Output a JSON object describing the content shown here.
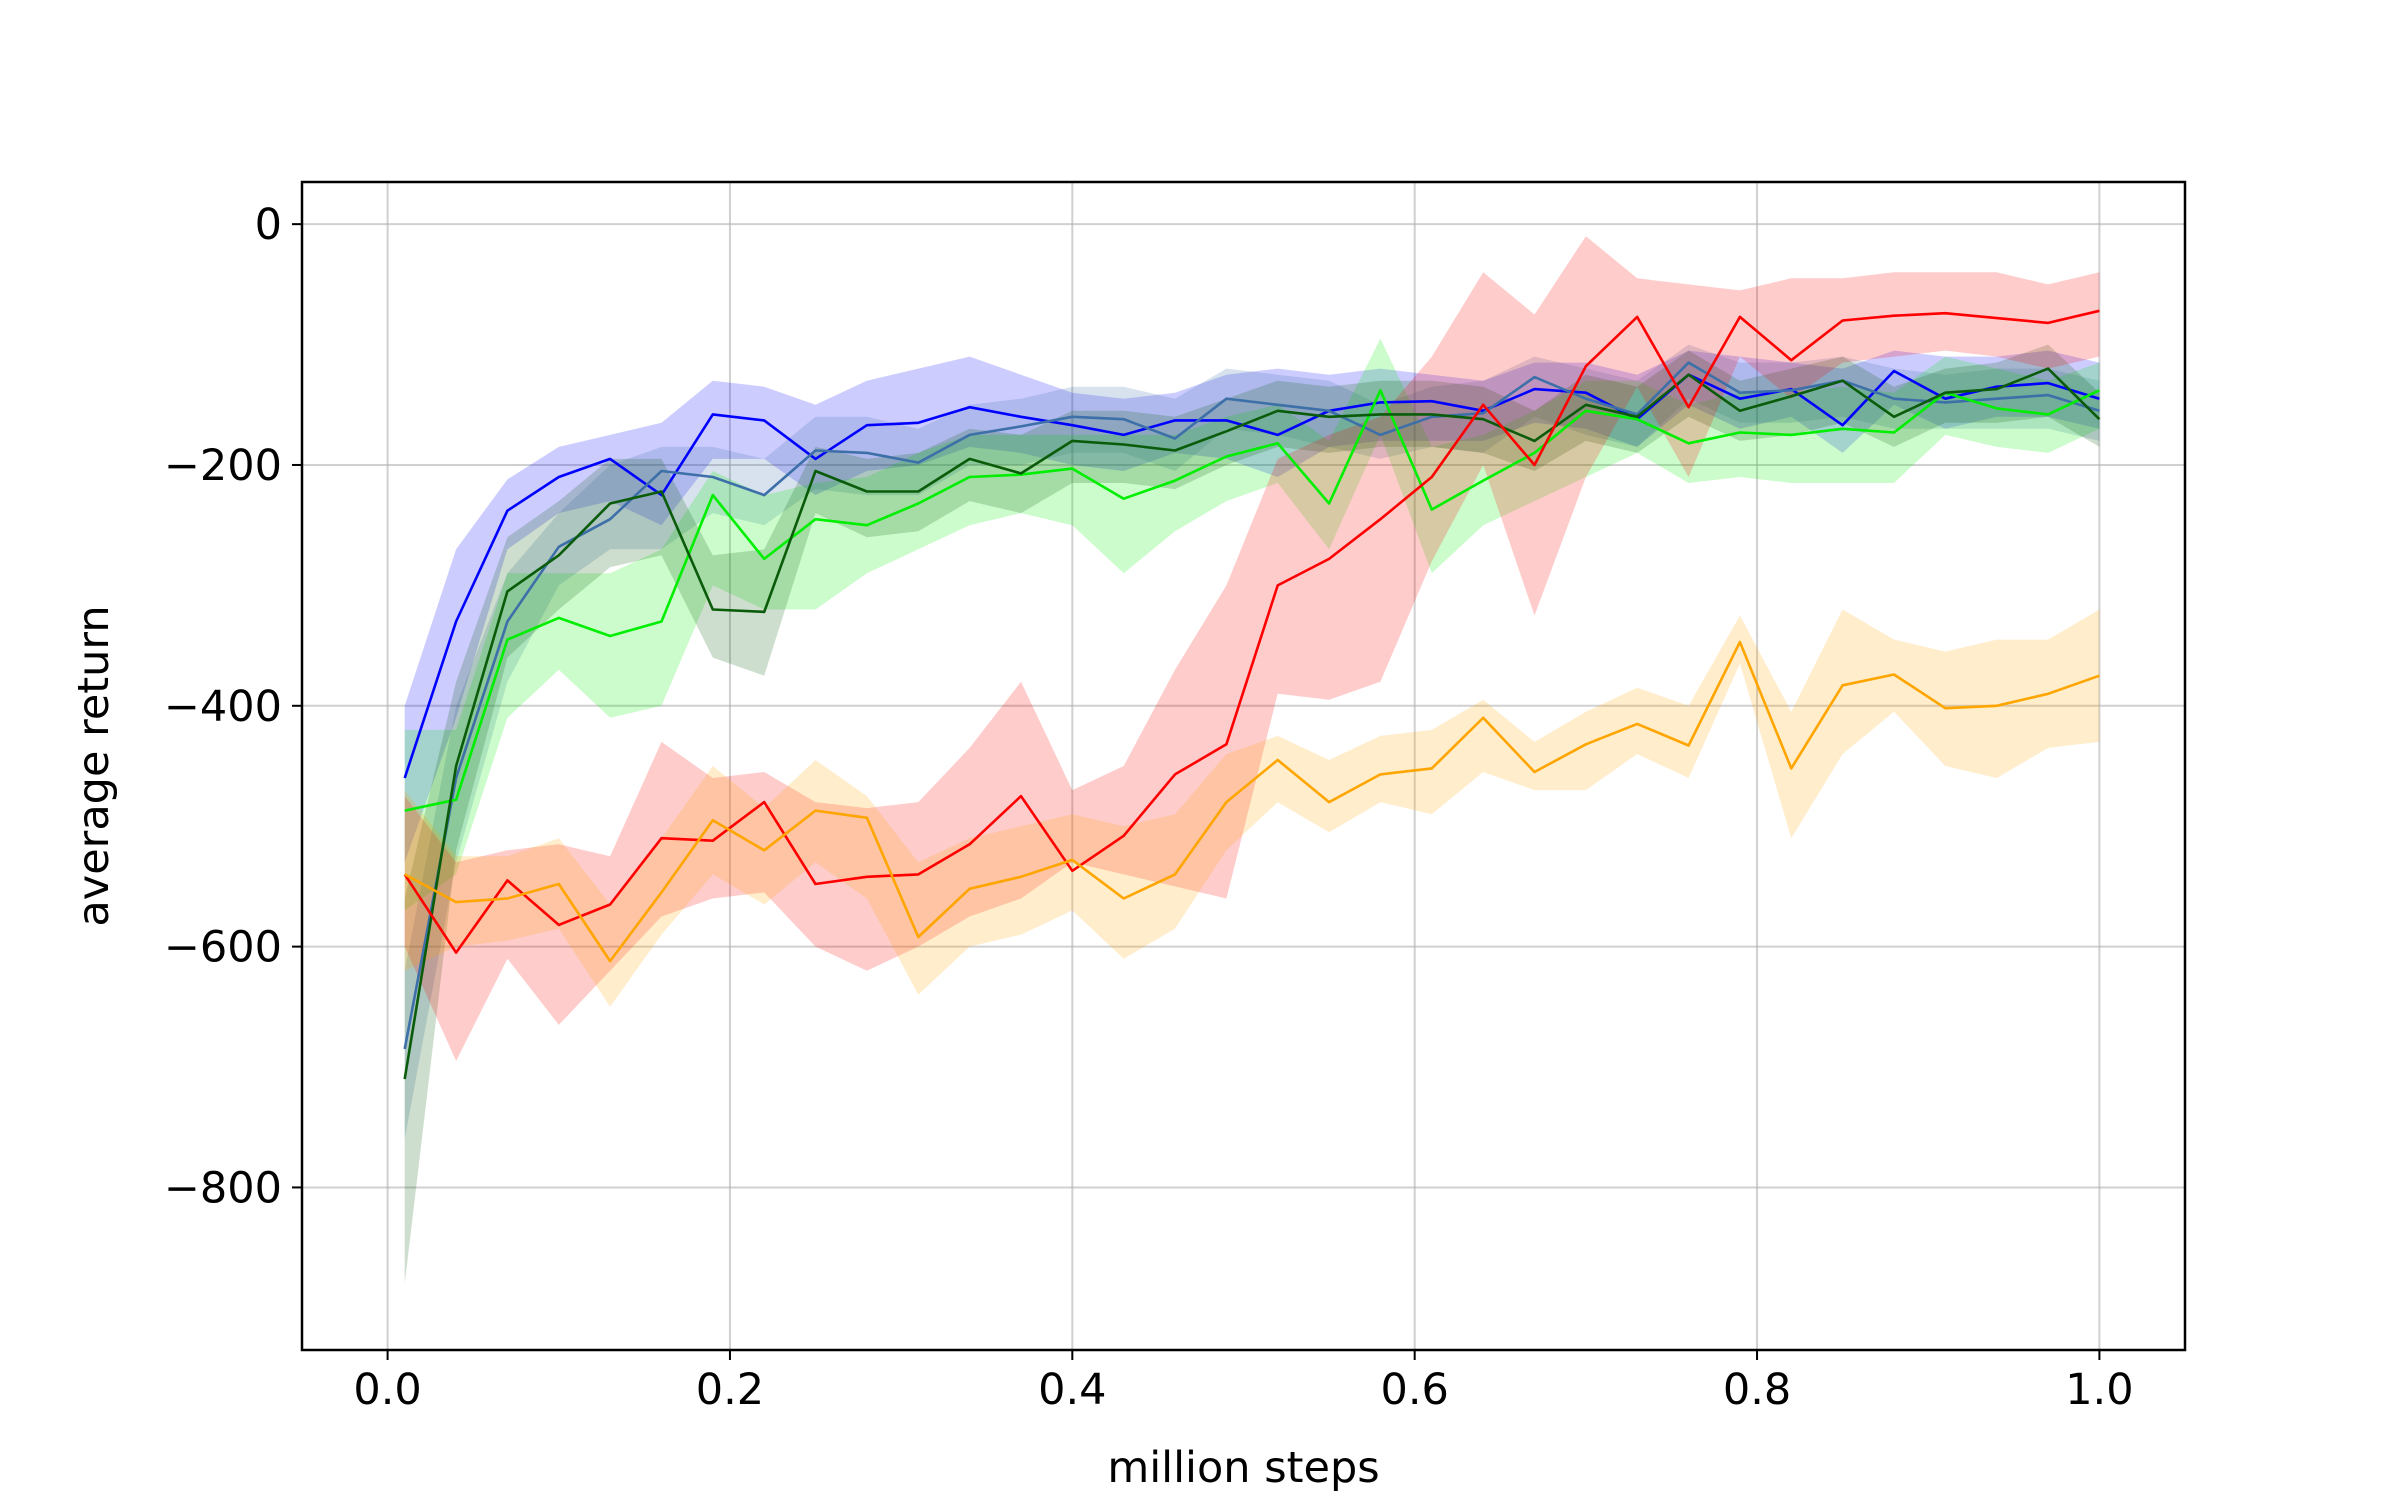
{
  "chart_data": {
    "type": "line",
    "title": "",
    "xlabel": "million steps",
    "ylabel": "average return",
    "xlim": [
      -0.05,
      1.05
    ],
    "ylim": [
      -935,
      35
    ],
    "x_ticks": [
      0.0,
      0.2,
      0.4,
      0.6,
      0.8,
      1.0
    ],
    "x_tick_labels": [
      "0.0",
      "0.2",
      "0.4",
      "0.6",
      "0.8",
      "1.0"
    ],
    "y_ticks": [
      0,
      -200,
      -400,
      -600,
      -800
    ],
    "y_tick_labels": [
      "0",
      "−200",
      "−400",
      "−600",
      "−800"
    ],
    "grid": true,
    "legend": "none",
    "x": [
      0.01,
      0.04,
      0.07,
      0.1,
      0.13,
      0.16,
      0.19,
      0.22,
      0.25,
      0.28,
      0.31,
      0.34,
      0.37,
      0.4,
      0.43,
      0.46,
      0.49,
      0.52,
      0.55,
      0.58,
      0.61,
      0.64,
      0.67,
      0.7,
      0.73,
      0.76,
      0.79,
      0.82,
      0.85,
      0.88,
      0.91,
      0.94,
      0.97,
      1.0
    ],
    "series": [
      {
        "color": "#0000ff",
        "values": [
          -460,
          -330,
          -238,
          -210,
          -195,
          -225,
          -158,
          -163,
          -195,
          -167,
          -165,
          -152,
          -160,
          -167,
          -175,
          -163,
          -163,
          -175,
          -155,
          -148,
          -147,
          -155,
          -137,
          -140,
          -162,
          -125,
          -145,
          -137,
          -167,
          -122,
          -145,
          -135,
          -132,
          -145
        ],
        "lower": [
          -530,
          -410,
          -270,
          -240,
          -230,
          -250,
          -195,
          -195,
          -225,
          -205,
          -200,
          -185,
          -190,
          -200,
          -205,
          -190,
          -195,
          -210,
          -185,
          -180,
          -180,
          -180,
          -165,
          -170,
          -185,
          -150,
          -170,
          -160,
          -190,
          -150,
          -170,
          -160,
          -160,
          -170
        ],
        "upper": [
          -400,
          -270,
          -212,
          -185,
          -175,
          -165,
          -130,
          -135,
          -150,
          -130,
          -120,
          -110,
          -125,
          -140,
          -145,
          -140,
          -125,
          -120,
          -125,
          -120,
          -125,
          -130,
          -115,
          -115,
          -125,
          -105,
          -110,
          -115,
          -120,
          -105,
          -110,
          -110,
          -105,
          -115
        ]
      },
      {
        "color": "#3d6fa8",
        "values": [
          -685,
          -460,
          -330,
          -268,
          -245,
          -205,
          -210,
          -225,
          -188,
          -190,
          -198,
          -175,
          -168,
          -160,
          -162,
          -178,
          -145,
          -150,
          -155,
          -175,
          -160,
          -157,
          -127,
          -145,
          -158,
          -115,
          -140,
          -138,
          -130,
          -145,
          -148,
          -145,
          -142,
          -155
        ],
        "lower": [
          -760,
          -530,
          -380,
          -300,
          -270,
          -270,
          -240,
          -250,
          -220,
          -225,
          -225,
          -200,
          -200,
          -190,
          -190,
          -205,
          -170,
          -175,
          -185,
          -195,
          -185,
          -190,
          -160,
          -175,
          -185,
          -145,
          -165,
          -165,
          -160,
          -170,
          -170,
          -170,
          -170,
          -180
        ],
        "upper": [
          -620,
          -400,
          -290,
          -240,
          -200,
          -185,
          -185,
          -195,
          -160,
          -160,
          -170,
          -150,
          -145,
          -135,
          -135,
          -145,
          -120,
          -125,
          -130,
          -150,
          -135,
          -130,
          -110,
          -120,
          -130,
          -100,
          -115,
          -115,
          -110,
          -120,
          -125,
          -120,
          -120,
          -130
        ]
      },
      {
        "color": "#00ee00",
        "values": [
          -487,
          -478,
          -345,
          -327,
          -342,
          -330,
          -225,
          -278,
          -245,
          -250,
          -232,
          -210,
          -208,
          -203,
          -228,
          -213,
          -193,
          -182,
          -232,
          -138,
          -237,
          -213,
          -190,
          -155,
          -162,
          -182,
          -173,
          -175,
          -170,
          -173,
          -140,
          -153,
          -158,
          -138
        ],
        "lower": [
          -570,
          -540,
          -410,
          -370,
          -410,
          -400,
          -300,
          -320,
          -320,
          -290,
          -270,
          -250,
          -240,
          -250,
          -290,
          -255,
          -230,
          -215,
          -270,
          -175,
          -290,
          -250,
          -230,
          -210,
          -190,
          -215,
          -210,
          -215,
          -215,
          -215,
          -175,
          -185,
          -190,
          -170
        ],
        "upper": [
          -420,
          -420,
          -290,
          -290,
          -290,
          -270,
          -205,
          -225,
          -215,
          -210,
          -190,
          -175,
          -175,
          -175,
          -175,
          -175,
          -160,
          -150,
          -180,
          -95,
          -185,
          -175,
          -155,
          -130,
          -130,
          -150,
          -140,
          -140,
          -135,
          -140,
          -110,
          -120,
          -130,
          -115
        ]
      },
      {
        "color": "#0a5c0a",
        "values": [
          -710,
          -450,
          -305,
          -275,
          -232,
          -222,
          -320,
          -322,
          -205,
          -222,
          -222,
          -195,
          -207,
          -180,
          -183,
          -188,
          -172,
          -155,
          -160,
          -158,
          -158,
          -162,
          -180,
          -150,
          -160,
          -125,
          -155,
          -143,
          -130,
          -160,
          -140,
          -137,
          -120,
          -162
        ],
        "lower": [
          -880,
          -520,
          -360,
          -320,
          -285,
          -275,
          -360,
          -375,
          -240,
          -260,
          -255,
          -230,
          -240,
          -215,
          -215,
          -220,
          -200,
          -185,
          -190,
          -185,
          -185,
          -190,
          -205,
          -180,
          -190,
          -160,
          -180,
          -175,
          -165,
          -185,
          -165,
          -165,
          -160,
          -185
        ],
        "upper": [
          -560,
          -380,
          -260,
          -230,
          -195,
          -195,
          -275,
          -270,
          -185,
          -195,
          -190,
          -170,
          -175,
          -155,
          -155,
          -160,
          -145,
          -130,
          -135,
          -130,
          -130,
          -135,
          -155,
          -125,
          -135,
          -105,
          -130,
          -120,
          -110,
          -135,
          -120,
          -115,
          -100,
          -140
        ]
      },
      {
        "color": "#ff0000",
        "values": [
          -540,
          -605,
          -545,
          -582,
          -565,
          -510,
          -512,
          -480,
          -548,
          -542,
          -540,
          -515,
          -475,
          -537,
          -508,
          -457,
          -432,
          -300,
          -278,
          -245,
          -210,
          -150,
          -200,
          -118,
          -77,
          -152,
          -77,
          -113,
          -80,
          -76,
          -74,
          -78,
          -82,
          -72
        ],
        "lower": [
          -600,
          -695,
          -610,
          -665,
          -620,
          -575,
          -560,
          -555,
          -600,
          -620,
          -600,
          -575,
          -560,
          -530,
          -540,
          -550,
          -560,
          -390,
          -395,
          -380,
          -280,
          -200,
          -325,
          -210,
          -135,
          -210,
          -110,
          -145,
          -115,
          -110,
          -105,
          -110,
          -120,
          -110
        ],
        "upper": [
          -475,
          -530,
          -520,
          -515,
          -525,
          -430,
          -460,
          -455,
          -480,
          -485,
          -480,
          -435,
          -380,
          -470,
          -450,
          -370,
          -300,
          -195,
          -175,
          -160,
          -110,
          -40,
          -75,
          -10,
          -45,
          -50,
          -55,
          -45,
          -45,
          -40,
          -40,
          -40,
          -50,
          -40
        ]
      },
      {
        "color": "#ffa500",
        "values": [
          -540,
          -563,
          -560,
          -548,
          -612,
          -555,
          -495,
          -520,
          -487,
          -493,
          -592,
          -552,
          -542,
          -528,
          -560,
          -540,
          -480,
          -445,
          -480,
          -457,
          -452,
          -410,
          -455,
          -432,
          -415,
          -433,
          -347,
          -452,
          -383,
          -374,
          -402,
          -400,
          -390,
          -375
        ],
        "lower": [
          -620,
          -600,
          -595,
          -585,
          -650,
          -590,
          -540,
          -565,
          -530,
          -560,
          -640,
          -600,
          -590,
          -570,
          -610,
          -585,
          -520,
          -480,
          -505,
          -480,
          -490,
          -455,
          -470,
          -470,
          -440,
          -460,
          -365,
          -510,
          -440,
          -405,
          -450,
          -460,
          -435,
          -430
        ],
        "upper": [
          -470,
          -525,
          -525,
          -510,
          -565,
          -510,
          -450,
          -485,
          -445,
          -475,
          -530,
          -510,
          -500,
          -490,
          -500,
          -490,
          -440,
          -425,
          -445,
          -425,
          -420,
          -395,
          -430,
          -405,
          -385,
          -400,
          -325,
          -405,
          -320,
          -345,
          -355,
          -345,
          -345,
          -320
        ]
      }
    ]
  }
}
